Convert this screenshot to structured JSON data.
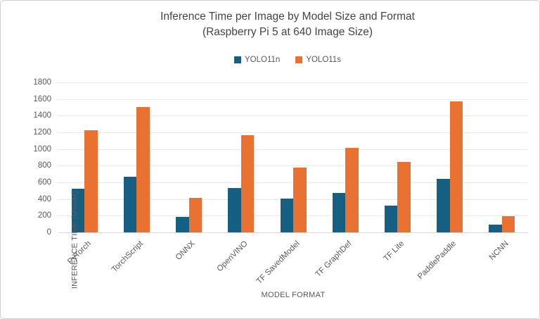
{
  "title": {
    "line1": "Inference Time per Image by Model Size and Format",
    "line2": "(Raspberry Pi 5 at 640 Image Size)"
  },
  "chart_data": {
    "type": "bar",
    "title": "Inference Time per Image by Model Size and Format (Raspberry Pi 5 at 640 Image Size)",
    "categories": [
      "PyTorch",
      "TorchScript",
      "ONNX",
      "OpenVINO",
      "TF SavedModel",
      "TF GraphDef",
      "TF Lite",
      "PaddlePaddle",
      "NCNN"
    ],
    "series": [
      {
        "name": "YOLO11n",
        "color": "#156082",
        "values": [
          525,
          665,
          182,
          530,
          406,
          474,
          324,
          644,
          94
        ]
      },
      {
        "name": "YOLO11s",
        "color": "#E97132",
        "values": [
          1226,
          1508,
          415,
          1167,
          776,
          1014,
          846,
          1568,
          197
        ]
      }
    ],
    "xlabel": "MODEL FORMAT",
    "ylabel": "INFERENCE TIME (MS/IM)",
    "ylim": [
      0,
      1800
    ],
    "ytick_step": 200,
    "grid": true,
    "legend_position": "top"
  },
  "colors": {
    "background": "#ffffff",
    "border": "#cfcfcf",
    "gridline": "#e8e8e8",
    "axis_line": "#d9d9d9",
    "axis_text": "#595959",
    "title_text": "#444444"
  }
}
